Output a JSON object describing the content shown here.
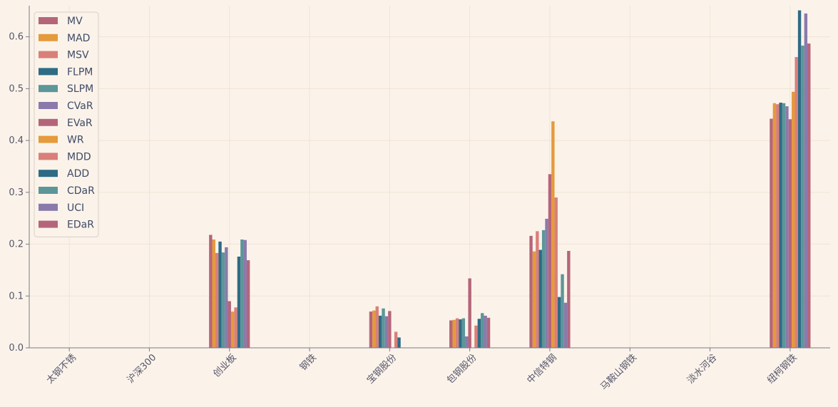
{
  "chart_data": {
    "type": "bar",
    "title": "",
    "xlabel": "",
    "ylabel": "",
    "ylim": [
      0,
      0.66
    ],
    "yticks": [
      "0.0",
      "0.1",
      "0.2",
      "0.3",
      "0.4",
      "0.5",
      "0.6"
    ],
    "grid": true,
    "legend_position": "top-left",
    "categories": [
      "太钢不锈",
      "沪深300",
      "创业板",
      "钢铁",
      "宝钢股份",
      "包钢股份",
      "中信特钢",
      "马鞍山钢铁",
      "淡水河谷",
      "纽柯钢铁"
    ],
    "series": [
      {
        "name": "MV",
        "color": "#b5657a",
        "values": [
          0,
          0,
          0.218,
          0,
          0.07,
          0.053,
          0.216,
          0,
          0,
          0.442
        ]
      },
      {
        "name": "MAD",
        "color": "#e59a3c",
        "values": [
          0,
          0,
          0.209,
          0,
          0.072,
          0.054,
          0.186,
          0,
          0,
          0.472
        ]
      },
      {
        "name": "MSV",
        "color": "#d98079",
        "values": [
          0,
          0,
          0.183,
          0,
          0.08,
          0.057,
          0.225,
          0,
          0,
          0.47
        ]
      },
      {
        "name": "FLPM",
        "color": "#2e6b85",
        "values": [
          0,
          0,
          0.205,
          0,
          0.062,
          0.055,
          0.189,
          0,
          0,
          0.473
        ]
      },
      {
        "name": "SLPM",
        "color": "#5b9699",
        "values": [
          0,
          0,
          0.184,
          0,
          0.076,
          0.057,
          0.227,
          0,
          0,
          0.472
        ]
      },
      {
        "name": "CVaR",
        "color": "#8a7aab",
        "values": [
          0,
          0,
          0.194,
          0,
          0.061,
          0.022,
          0.249,
          0,
          0,
          0.466
        ]
      },
      {
        "name": "EVaR",
        "color": "#b5657a",
        "values": [
          0,
          0,
          0.09,
          0,
          0.071,
          0.134,
          0.335,
          0,
          0,
          0.441
        ]
      },
      {
        "name": "WR",
        "color": "#e59a3c",
        "values": [
          0,
          0,
          0.07,
          0,
          0.0,
          0.0,
          0.437,
          0,
          0,
          0.494
        ]
      },
      {
        "name": "MDD",
        "color": "#d98079",
        "values": [
          0,
          0,
          0.078,
          0,
          0.031,
          0.043,
          0.29,
          0,
          0,
          0.561
        ]
      },
      {
        "name": "ADD",
        "color": "#2e6b85",
        "values": [
          0,
          0,
          0.176,
          0,
          0.02,
          0.056,
          0.098,
          0,
          0,
          0.651
        ]
      },
      {
        "name": "CDaR",
        "color": "#5b9699",
        "values": [
          0,
          0,
          0.209,
          0,
          0.0,
          0.067,
          0.142,
          0,
          0,
          0.583
        ]
      },
      {
        "name": "UCI",
        "color": "#8a7aab",
        "values": [
          0,
          0,
          0.208,
          0,
          0.0,
          0.062,
          0.087,
          0,
          0,
          0.645
        ]
      },
      {
        "name": "EDaR",
        "color": "#b5657a",
        "values": [
          0,
          0,
          0.169,
          0,
          0.0,
          0.058,
          0.187,
          0,
          0,
          0.587
        ]
      }
    ]
  }
}
